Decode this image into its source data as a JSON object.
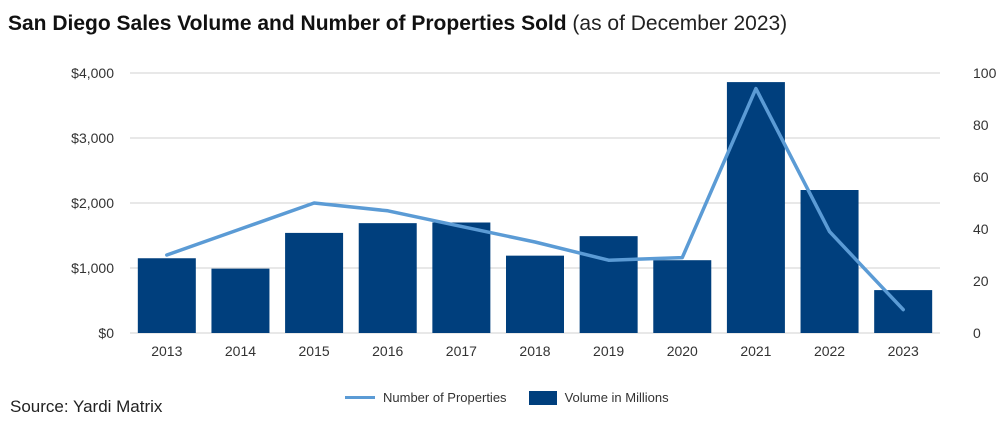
{
  "title": {
    "main": "San Diego Sales Volume and Number of Properties Sold",
    "sub": "(as of December 2023)"
  },
  "source": "Source: Yardi Matrix",
  "colors": {
    "bar": "#003f7d",
    "line": "#5b9bd5",
    "grid": "#d0d0d0"
  },
  "legend": {
    "line_label": "Number of Properties",
    "bar_label": "Volume in Millions"
  },
  "chart_data": {
    "type": "bar",
    "categories": [
      "2013",
      "2014",
      "2015",
      "2016",
      "2017",
      "2018",
      "2019",
      "2020",
      "2021",
      "2022",
      "2023"
    ],
    "series": [
      {
        "name": "Volume in Millions",
        "type": "bar",
        "axis": "left",
        "values": [
          1150,
          990,
          1540,
          1690,
          1700,
          1190,
          1490,
          1120,
          3860,
          2200,
          660
        ]
      },
      {
        "name": "Number of Properties",
        "type": "line",
        "axis": "right",
        "values": [
          30,
          40,
          50,
          47,
          41,
          35,
          28,
          29,
          94,
          39,
          9
        ]
      }
    ],
    "y_left": {
      "min": 0,
      "max": 4000,
      "ticks": [
        "$0",
        "$1,000",
        "$2,000",
        "$3,000",
        "$4,000"
      ]
    },
    "y_right": {
      "min": 0,
      "max": 100,
      "ticks": [
        "0",
        "20",
        "40",
        "60",
        "80",
        "100"
      ]
    },
    "grid": true,
    "legend_position": "bottom"
  }
}
